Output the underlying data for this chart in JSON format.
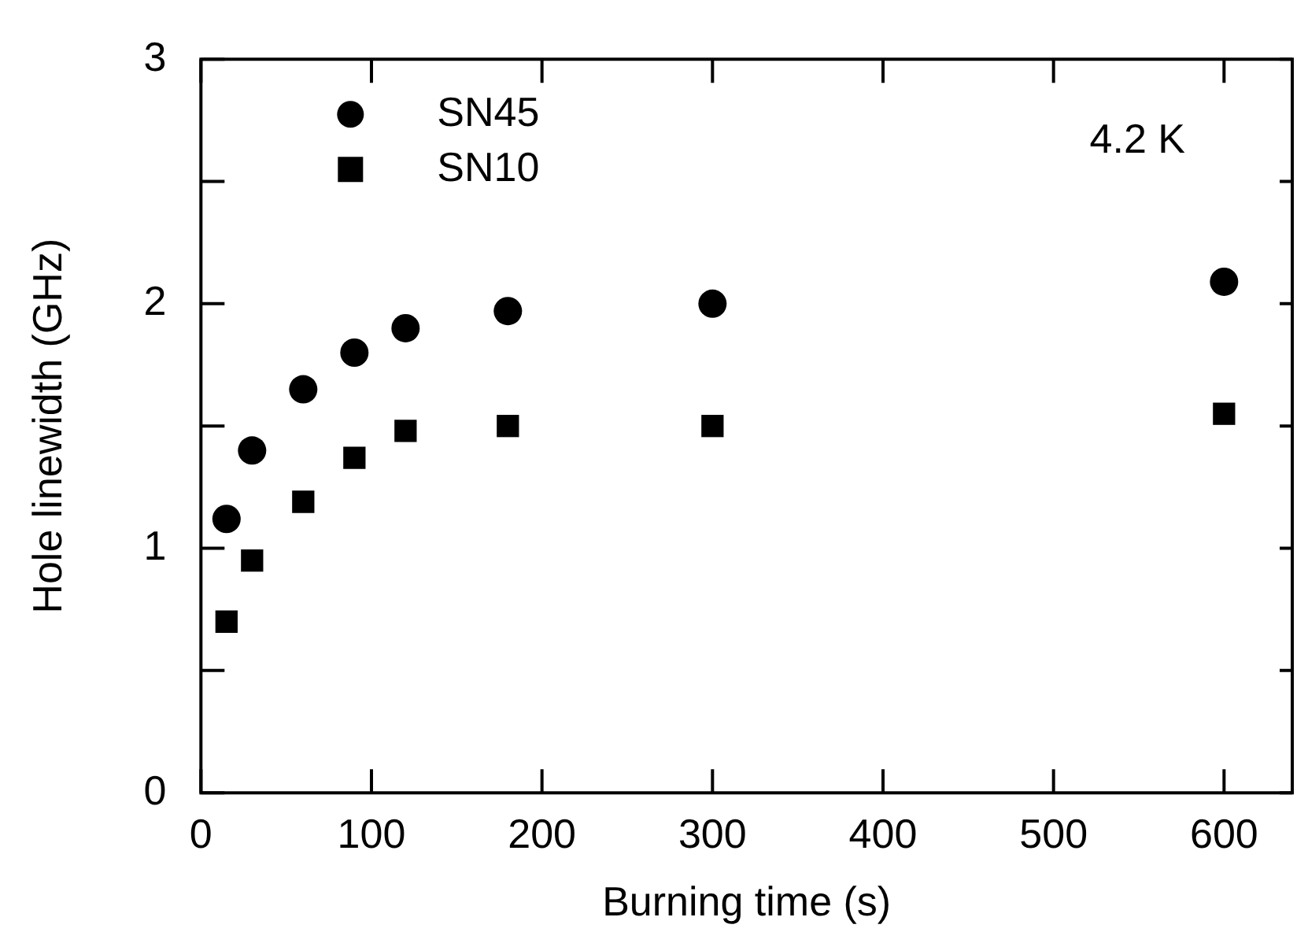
{
  "chart_data": {
    "type": "scatter",
    "xlabel": "Burning time (s)",
    "ylabel": "Hole linewidth (GHz)",
    "annotations": [
      "4.2 K"
    ],
    "series": [
      {
        "name": "SN45",
        "color": "#000000",
        "marker": "circle",
        "x": [
          15,
          30,
          60,
          90,
          120,
          180,
          300,
          600
        ],
        "values": [
          1.12,
          1.4,
          1.65,
          1.8,
          1.9,
          1.97,
          2.0,
          2.09
        ]
      },
      {
        "name": "SN10",
        "color": "#000000",
        "marker": "square",
        "x": [
          15,
          30,
          60,
          90,
          120,
          180,
          300,
          600
        ],
        "values": [
          0.7,
          0.95,
          1.19,
          1.37,
          1.48,
          1.5,
          1.5,
          1.55
        ]
      }
    ],
    "xlim": [
      0,
      640
    ],
    "xticks": [
      0,
      100,
      200,
      300,
      400,
      500,
      600
    ],
    "ylim": [
      0,
      3
    ],
    "yticks": [
      0,
      {
        "value": 0.5,
        "label": null
      },
      1,
      {
        "value": 1.5,
        "label": null
      },
      2,
      {
        "value": 2.5,
        "label": null
      },
      3
    ],
    "legend": "top left",
    "grid": false
  }
}
